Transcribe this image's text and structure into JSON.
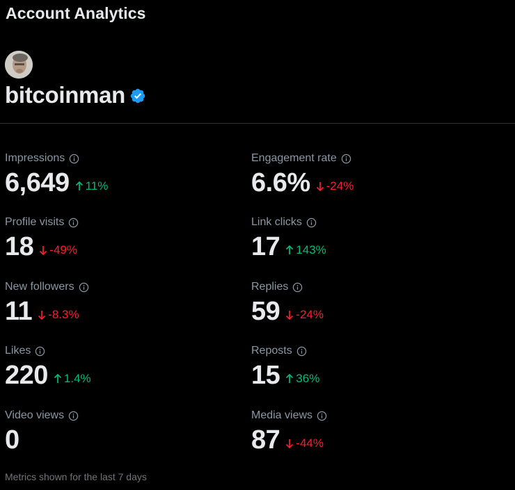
{
  "header": {
    "title": "Account Analytics"
  },
  "profile": {
    "username": "bitcoinman",
    "verified_color": "#1d9bf0"
  },
  "colors": {
    "up": "#00ba7c",
    "down": "#f4212e",
    "label": "#8b98a5"
  },
  "metrics": {
    "impressions": {
      "label": "Impressions",
      "value": "6,649",
      "change": "11%",
      "direction": "up"
    },
    "engagement_rate": {
      "label": "Engagement rate",
      "value": "6.6%",
      "change": "-24%",
      "direction": "down"
    },
    "profile_visits": {
      "label": "Profile visits",
      "value": "18",
      "change": "-49%",
      "direction": "down"
    },
    "link_clicks": {
      "label": "Link clicks",
      "value": "17",
      "change": "143%",
      "direction": "up"
    },
    "new_followers": {
      "label": "New followers",
      "value": "11",
      "change": "-8.3%",
      "direction": "down"
    },
    "replies": {
      "label": "Replies",
      "value": "59",
      "change": "-24%",
      "direction": "down"
    },
    "likes": {
      "label": "Likes",
      "value": "220",
      "change": "1.4%",
      "direction": "up"
    },
    "reposts": {
      "label": "Reposts",
      "value": "15",
      "change": "36%",
      "direction": "up"
    },
    "video_views": {
      "label": "Video views",
      "value": "0",
      "change": "",
      "direction": "none"
    },
    "media_views": {
      "label": "Media views",
      "value": "87",
      "change": "-44%",
      "direction": "down"
    }
  },
  "footer": {
    "note": "Metrics shown for the last 7 days"
  }
}
